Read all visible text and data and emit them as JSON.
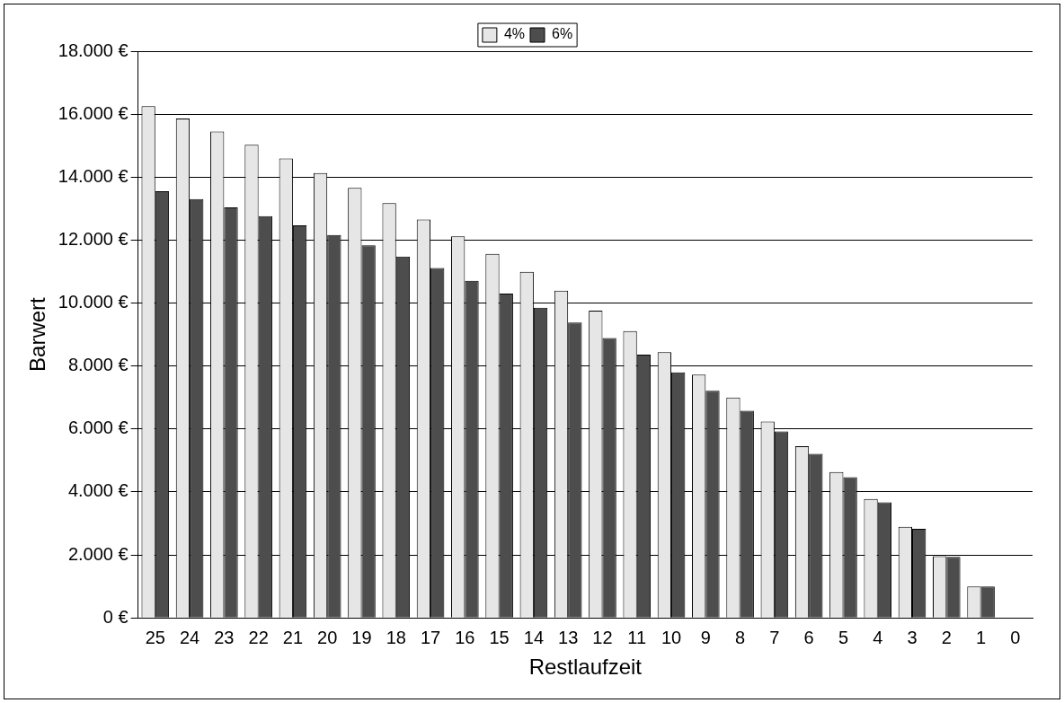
{
  "chart_data": {
    "type": "bar",
    "xlabel": "Restlaufzeit",
    "ylabel": "Barwert",
    "categories": [
      "25",
      "24",
      "23",
      "22",
      "21",
      "20",
      "19",
      "18",
      "17",
      "16",
      "15",
      "14",
      "13",
      "12",
      "11",
      "10",
      "9",
      "8",
      "7",
      "6",
      "5",
      "4",
      "3",
      "2",
      "1",
      "0"
    ],
    "series": [
      {
        "name": "4%",
        "color": "#e6e6e6",
        "values": [
          16250,
          15860,
          15450,
          15030,
          14590,
          14130,
          13660,
          13170,
          12650,
          12120,
          11560,
          10990,
          10390,
          9760,
          9110,
          8440,
          7730,
          7000,
          6240,
          5450,
          4630,
          3780,
          2890,
          1960,
          1000,
          0
        ]
      },
      {
        "name": "6%",
        "color": "#4d4d4d",
        "values": [
          13550,
          13300,
          13040,
          12760,
          12470,
          12160,
          11830,
          11480,
          11110,
          10710,
          10300,
          9850,
          9380,
          8890,
          8360,
          7800,
          7210,
          6580,
          5920,
          5210,
          4470,
          3670,
          2830,
          1940,
          1000,
          0
        ]
      }
    ],
    "ylim": [
      0,
      18000
    ],
    "yticks": [
      {
        "value": 0,
        "label": "0 €"
      },
      {
        "value": 2000,
        "label": "2.000 €"
      },
      {
        "value": 4000,
        "label": "4.000 €"
      },
      {
        "value": 6000,
        "label": "6.000 €"
      },
      {
        "value": 8000,
        "label": "8.000 €"
      },
      {
        "value": 10000,
        "label": "10.000 €"
      },
      {
        "value": 12000,
        "label": "12.000 €"
      },
      {
        "value": 14000,
        "label": "14.000 €"
      },
      {
        "value": 16000,
        "label": "16.000 €"
      },
      {
        "value": 18000,
        "label": "18.000 €"
      }
    ],
    "grid": "y",
    "legend": "top"
  }
}
